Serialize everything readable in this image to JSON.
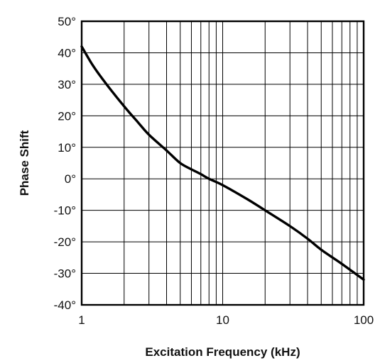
{
  "chart_data": {
    "type": "line",
    "title": "",
    "xlabel": "Excitation Frequency (kHz)",
    "ylabel": "Phase Shift",
    "x_scale": "log",
    "xlim": [
      1,
      100
    ],
    "ylim": [
      -40,
      50
    ],
    "x_tick_values": [
      1,
      10,
      100
    ],
    "x_tick_labels": [
      "1",
      "10",
      "100"
    ],
    "y_tick_values": [
      50,
      40,
      30,
      20,
      10,
      0,
      -10,
      -20,
      -30,
      -40
    ],
    "y_tick_labels": [
      "50°",
      "40°",
      "30°",
      "20°",
      "10°",
      "0°",
      "-10°",
      "-20°",
      "-30°",
      "-40°"
    ],
    "grid": true,
    "line_color": "#000000",
    "series": [
      {
        "x": [
          1,
          1.2,
          1.5,
          2,
          2.5,
          3,
          4,
          5,
          6,
          7,
          8,
          10,
          15,
          20,
          30,
          40,
          50,
          70,
          100
        ],
        "y": [
          42,
          36,
          30,
          23,
          18,
          14,
          9,
          5,
          3,
          1.5,
          0,
          -2,
          -6.5,
          -10,
          -15,
          -19,
          -22.5,
          -27,
          -32
        ]
      }
    ]
  }
}
